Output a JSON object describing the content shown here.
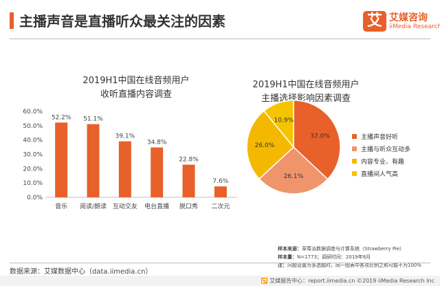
{
  "header": {
    "title": "主播声音是直播听众最关注的因素",
    "logo_glyph": "艾",
    "logo_cn": "艾媒咨询",
    "logo_en": "iiMedia Research"
  },
  "colors": {
    "accent": "#e8602a",
    "bar": "#e8602a",
    "pie": [
      "#e8602a",
      "#f0946b",
      "#f5b800",
      "#f5c400"
    ]
  },
  "chart_data": [
    {
      "type": "bar",
      "title_line1": "2019H1中国在线音频用户",
      "title_line2": "收听直播内容调查",
      "categories": [
        "音乐",
        "阅读/朗读",
        "互动交友",
        "电台直播",
        "脱口秀",
        "二次元"
      ],
      "values": [
        52.2,
        51.1,
        39.1,
        34.8,
        22.8,
        7.6
      ],
      "value_labels": [
        "52.2%",
        "51.1%",
        "39.1%",
        "34.8%",
        "22.8%",
        "7.6%"
      ],
      "ylim": [
        0,
        60
      ],
      "yticks": [
        "0.0%",
        "10.0%",
        "20.0%",
        "30.0%",
        "40.0%",
        "50.0%",
        "60.0%"
      ],
      "grid": false
    },
    {
      "type": "pie",
      "title_line1": "2019H1中国在线音频用户",
      "title_line2": "主播选择影响因素调查",
      "categories": [
        "主播声音好听",
        "主播与听众互动多",
        "内容专业、有趣",
        "直播间人气高"
      ],
      "values": [
        37.0,
        26.1,
        26.0,
        10.9
      ],
      "value_labels": [
        "37.0%",
        "26.1%",
        "26.0%",
        "10.9%"
      ],
      "legend_position": "right"
    }
  ],
  "source": {
    "left": "数据来源：艾媒数据中心（data.iimedia.cn）",
    "sample_source_label": "样本来源：",
    "sample_source": "草莓派数据调查与计算系统（Strawberry Pie）",
    "sample_size_label": "样本量：",
    "sample_size": "N=1773；调研时间：2019年8月",
    "note_label": "注：",
    "note": "问题设置为多选题时，同一图表中各项比例之和可能不为100%"
  },
  "footer": {
    "text": "🔁 艾媒报告中心：report.iimedia.cn ©2019 iiMedia Research Inc"
  }
}
